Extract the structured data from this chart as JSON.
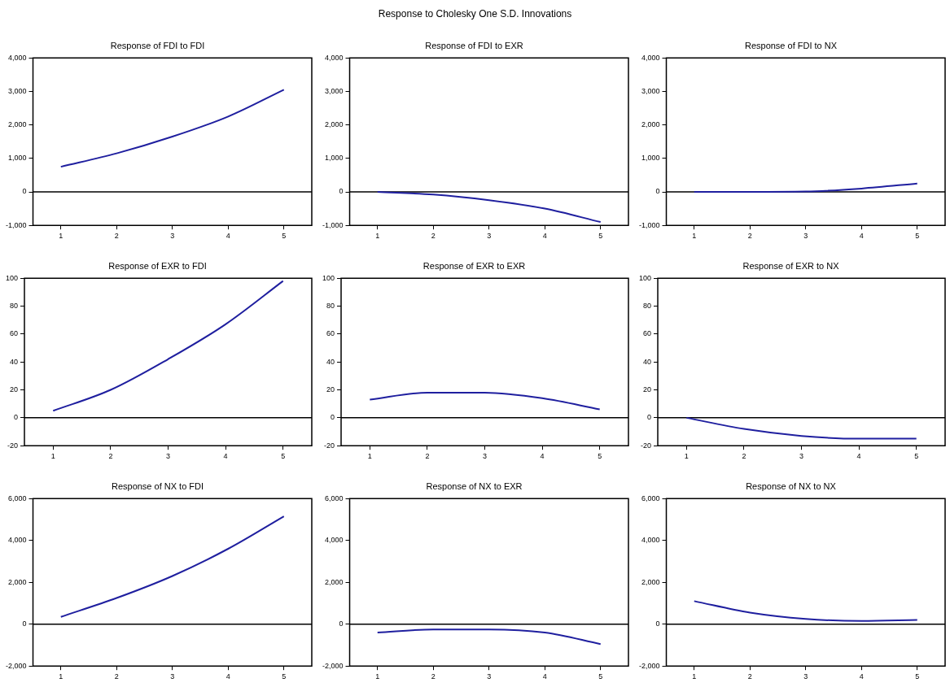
{
  "chart_data": [
    {
      "type": "other",
      "title": "Response to Cholesky One S.D. Innovations"
    },
    {
      "type": "line",
      "title": "Response of FDI to FDI",
      "categories": [
        "1",
        "2",
        "3",
        "4",
        "5"
      ],
      "series": [
        {
          "color": "#1f1f9f",
          "values": [
            750,
            1150,
            1650,
            2250,
            3050
          ]
        }
      ],
      "ylim": [
        -1000,
        4000
      ],
      "yticks": [
        {
          "value": -1000,
          "label": "-1,000"
        },
        0,
        {
          "value": 1000,
          "label": "1,000"
        },
        {
          "value": 2000,
          "label": "2,000"
        },
        {
          "value": 3000,
          "label": "3,000"
        },
        {
          "value": 4000,
          "label": "4,000"
        }
      ],
      "ref_lines": [
        {
          "axis": "y",
          "value": 0,
          "color": "#000000"
        }
      ],
      "grid": false,
      "legend": false,
      "marker": "none"
    },
    {
      "type": "line",
      "title": "Response of FDI to EXR",
      "categories": [
        "1",
        "2",
        "3",
        "4",
        "5"
      ],
      "series": [
        {
          "color": "#1f1f9f",
          "values": [
            0,
            -80,
            -250,
            -500,
            -900
          ]
        }
      ],
      "ylim": [
        -1000,
        4000
      ],
      "yticks": [
        {
          "value": -1000,
          "label": "-1,000"
        },
        0,
        {
          "value": 1000,
          "label": "1,000"
        },
        {
          "value": 2000,
          "label": "2,000"
        },
        {
          "value": 3000,
          "label": "3,000"
        },
        {
          "value": 4000,
          "label": "4,000"
        }
      ],
      "ref_lines": [
        {
          "axis": "y",
          "value": 0,
          "color": "#000000"
        }
      ],
      "grid": false,
      "legend": false,
      "marker": "none"
    },
    {
      "type": "line",
      "title": "Response of FDI to NX",
      "categories": [
        "1",
        "2",
        "3",
        "4",
        "5"
      ],
      "series": [
        {
          "color": "#1f1f9f",
          "values": [
            0,
            0,
            10,
            100,
            250
          ]
        }
      ],
      "ylim": [
        -1000,
        4000
      ],
      "yticks": [
        {
          "value": -1000,
          "label": "-1,000"
        },
        0,
        {
          "value": 1000,
          "label": "1,000"
        },
        {
          "value": 2000,
          "label": "2,000"
        },
        {
          "value": 3000,
          "label": "3,000"
        },
        {
          "value": 4000,
          "label": "4,000"
        }
      ],
      "ref_lines": [
        {
          "axis": "y",
          "value": 0,
          "color": "#000000"
        }
      ],
      "grid": false,
      "legend": false,
      "marker": "none"
    },
    {
      "type": "line",
      "title": "Response of EXR to FDI",
      "categories": [
        "1",
        "2",
        "3",
        "4",
        "5"
      ],
      "series": [
        {
          "color": "#1f1f9f",
          "values": [
            5,
            20,
            42,
            67,
            98
          ]
        }
      ],
      "ylim": [
        -20,
        100
      ],
      "yticks": [
        -20,
        0,
        20,
        40,
        60,
        80,
        100
      ],
      "ref_lines": [
        {
          "axis": "y",
          "value": 0,
          "color": "#000000"
        }
      ],
      "grid": false,
      "legend": false,
      "marker": "none"
    },
    {
      "type": "line",
      "title": "Response of EXR to EXR",
      "categories": [
        "1",
        "2",
        "3",
        "4",
        "5"
      ],
      "series": [
        {
          "color": "#1f1f9f",
          "values": [
            13,
            18,
            18,
            14,
            6
          ]
        }
      ],
      "ylim": [
        -20,
        100
      ],
      "yticks": [
        -20,
        0,
        20,
        40,
        60,
        80,
        100
      ],
      "ref_lines": [
        {
          "axis": "y",
          "value": 0,
          "color": "#000000"
        }
      ],
      "grid": false,
      "legend": false,
      "marker": "none"
    },
    {
      "type": "line",
      "title": "Response of EXR to NX",
      "categories": [
        "1",
        "2",
        "3",
        "4",
        "5"
      ],
      "series": [
        {
          "color": "#1f1f9f",
          "values": [
            0,
            -8,
            -13,
            -15,
            -15
          ]
        }
      ],
      "ylim": [
        -20,
        100
      ],
      "yticks": [
        -20,
        0,
        20,
        40,
        60,
        80,
        100
      ],
      "ref_lines": [
        {
          "axis": "y",
          "value": 0,
          "color": "#000000"
        }
      ],
      "grid": false,
      "legend": false,
      "marker": "none"
    },
    {
      "type": "line",
      "title": "Response of NX to FDI",
      "categories": [
        "1",
        "2",
        "3",
        "4",
        "5"
      ],
      "series": [
        {
          "color": "#1f1f9f",
          "values": [
            350,
            1250,
            2300,
            3600,
            5150
          ]
        }
      ],
      "ylim": [
        -2000,
        6000
      ],
      "yticks": [
        {
          "value": -2000,
          "label": "-2,000"
        },
        0,
        {
          "value": 2000,
          "label": "2,000"
        },
        {
          "value": 4000,
          "label": "4,000"
        },
        {
          "value": 6000,
          "label": "6,000"
        }
      ],
      "ref_lines": [
        {
          "axis": "y",
          "value": 0,
          "color": "#000000"
        }
      ],
      "grid": false,
      "legend": false,
      "marker": "none"
    },
    {
      "type": "line",
      "title": "Response of NX to EXR",
      "categories": [
        "1",
        "2",
        "3",
        "4",
        "5"
      ],
      "series": [
        {
          "color": "#1f1f9f",
          "values": [
            -400,
            -250,
            -250,
            -400,
            -950
          ]
        }
      ],
      "ylim": [
        -2000,
        6000
      ],
      "yticks": [
        {
          "value": -2000,
          "label": "-2,000"
        },
        0,
        {
          "value": 2000,
          "label": "2,000"
        },
        {
          "value": 4000,
          "label": "4,000"
        },
        {
          "value": 6000,
          "label": "6,000"
        }
      ],
      "ref_lines": [
        {
          "axis": "y",
          "value": 0,
          "color": "#000000"
        }
      ],
      "grid": false,
      "legend": false,
      "marker": "none"
    },
    {
      "type": "line",
      "title": "Response of NX to NX",
      "categories": [
        "1",
        "2",
        "3",
        "4",
        "5"
      ],
      "series": [
        {
          "color": "#1f1f9f",
          "values": [
            1100,
            550,
            250,
            150,
            200
          ]
        }
      ],
      "ylim": [
        -2000,
        6000
      ],
      "yticks": [
        {
          "value": -2000,
          "label": "-2,000"
        },
        0,
        {
          "value": 2000,
          "label": "2,000"
        },
        {
          "value": 4000,
          "label": "4,000"
        },
        {
          "value": 6000,
          "label": "6,000"
        }
      ],
      "ref_lines": [
        {
          "axis": "y",
          "value": 0,
          "color": "#000000"
        }
      ],
      "grid": false,
      "legend": false,
      "marker": "none"
    }
  ]
}
